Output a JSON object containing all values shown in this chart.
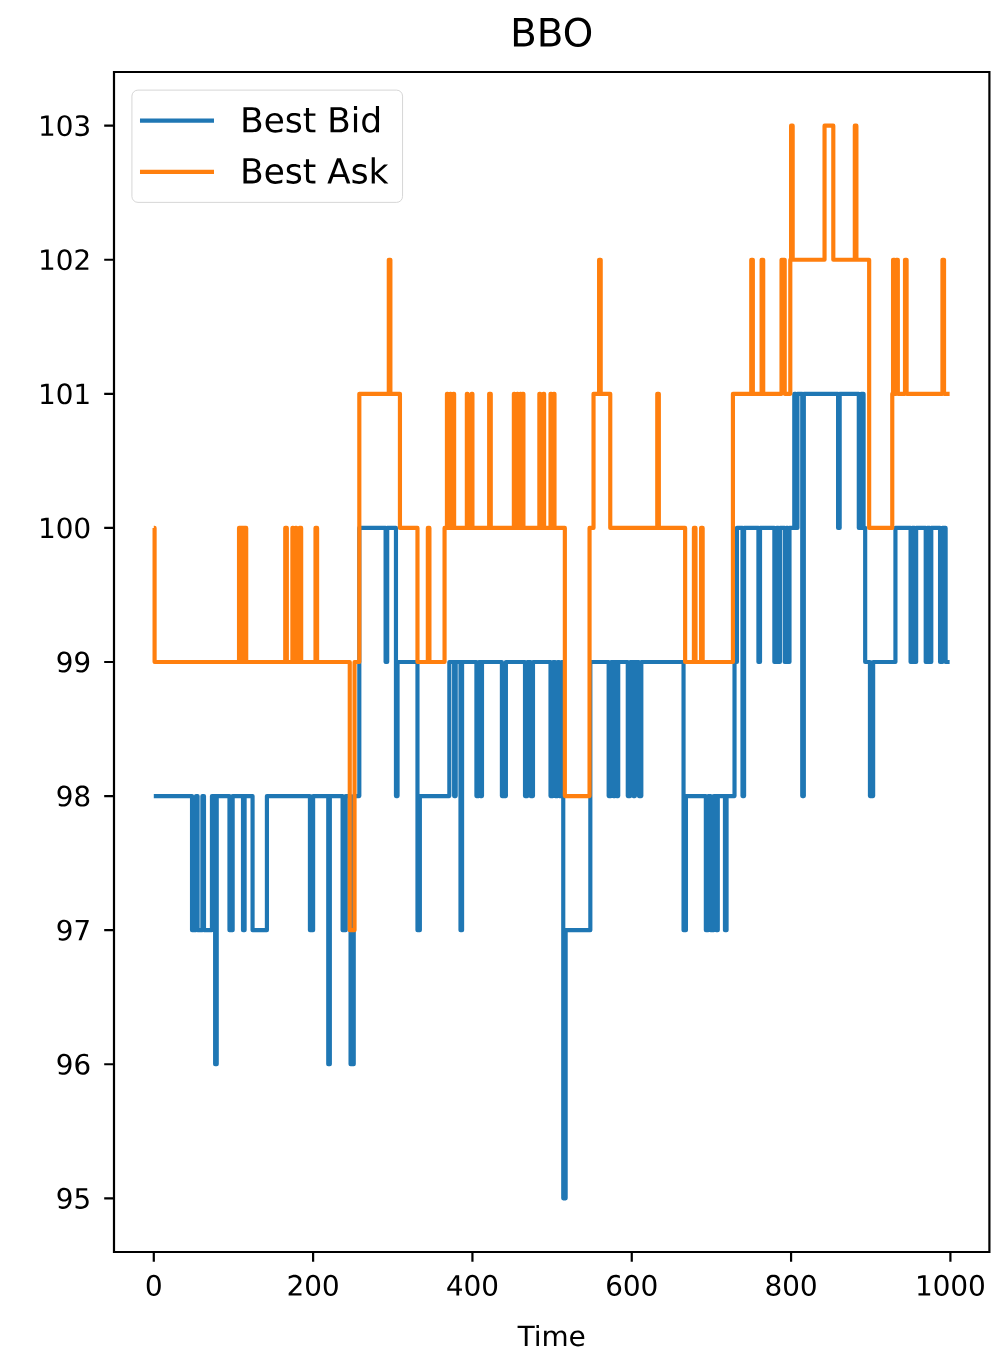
{
  "chart_data": {
    "type": "step",
    "title": "BBO",
    "xlabel": "Time",
    "xlim": [
      -49.95,
      1048.95
    ],
    "ylim": [
      94.6,
      103.4
    ],
    "xticks": [
      0,
      200,
      400,
      600,
      800,
      1000
    ],
    "yticks": [
      95,
      96,
      97,
      98,
      99,
      100,
      101,
      102,
      103
    ],
    "legend": "top left",
    "series": [
      {
        "name": "Best Bid",
        "color": "#1f77b4",
        "x": [
          0,
          48,
          53,
          55,
          61,
          63,
          73,
          77,
          79,
          95,
          99,
          112,
          114,
          124,
          142,
          196,
          200,
          219,
          221,
          237,
          241,
          247,
          251,
          258,
          291,
          293,
          304,
          306,
          331,
          334,
          371,
          377,
          379,
          385,
          387,
          405,
          408,
          410,
          412,
          437,
          442,
          466,
          469,
          473,
          476,
          498,
          501,
          504,
          507,
          509,
          512,
          514,
          517,
          548,
          571,
          574,
          577,
          579,
          581,
          583,
          595,
          598,
          602,
          604,
          609,
          612,
          665,
          668,
          693,
          696,
          699,
          703,
          706,
          708,
          717,
          719,
          729,
          732,
          739,
          741,
          759,
          761,
          779,
          782,
          784,
          786,
          792,
          794,
          796,
          798,
          804,
          806,
          808,
          814,
          816,
          859,
          861,
          885,
          888,
          891,
          893,
          899,
          903,
          931,
          950,
          952,
          955,
          957,
          969,
          971,
          974,
          976,
          987,
          990,
          994,
          999
        ],
        "values": [
          98,
          97,
          98,
          97,
          98,
          97,
          98,
          96,
          98,
          97,
          98,
          97,
          98,
          97,
          98,
          97,
          98,
          96,
          98,
          97,
          98,
          96,
          98,
          100,
          99,
          100,
          98,
          99,
          97,
          98,
          99,
          98,
          99,
          97,
          99,
          98,
          99,
          98,
          99,
          98,
          99,
          98,
          99,
          98,
          99,
          98,
          99,
          98,
          99,
          98,
          99,
          95,
          97,
          99,
          98,
          99,
          98,
          99,
          98,
          99,
          98,
          99,
          98,
          99,
          98,
          99,
          97,
          98,
          97,
          98,
          97,
          98,
          97,
          98,
          97,
          98,
          99,
          100,
          98,
          100,
          99,
          100,
          99,
          100,
          99,
          100,
          99,
          100,
          99,
          100,
          101,
          100,
          101,
          98,
          101,
          100,
          101,
          100,
          101,
          100,
          99,
          98,
          99,
          100,
          99,
          100,
          99,
          100,
          99,
          100,
          99,
          100,
          99,
          100,
          99,
          99
        ]
      },
      {
        "name": "Best Ask",
        "color": "#ff7f0e",
        "x": [
          0,
          1,
          107,
          108,
          109,
          110,
          111,
          112,
          113,
          114,
          115,
          116,
          165,
          167,
          174,
          175,
          178,
          179,
          183,
          185,
          203,
          205,
          246,
          252,
          258,
          295,
          297,
          309,
          331,
          344,
          346,
          365,
          368,
          369,
          372,
          373,
          376,
          377,
          393,
          394,
          399,
          400,
          421,
          423,
          452,
          453,
          456,
          457,
          460,
          461,
          463,
          464,
          484,
          485,
          489,
          490,
          498,
          499,
          502,
          503,
          516,
          547,
          552,
          559,
          561,
          573,
          632,
          634,
          667,
          678,
          680,
          687,
          689,
          727,
          750,
          752,
          763,
          765,
          788,
          792,
          799,
          800,
          802,
          842,
          853,
          880,
          882,
          898,
          927,
          928,
          930,
          932,
          934,
          943,
          945,
          990,
          992,
          999
        ],
        "values": [
          100,
          99,
          100,
          99,
          100,
          99,
          100,
          99,
          100,
          99,
          100,
          99,
          100,
          99,
          100,
          99,
          100,
          99,
          100,
          99,
          100,
          99,
          97,
          99,
          101,
          102,
          101,
          100,
          99,
          100,
          99,
          100,
          101,
          100,
          101,
          100,
          101,
          100,
          101,
          100,
          101,
          100,
          101,
          100,
          101,
          100,
          101,
          100,
          101,
          100,
          101,
          100,
          101,
          100,
          101,
          100,
          101,
          100,
          101,
          100,
          98,
          100,
          101,
          102,
          101,
          100,
          101,
          100,
          99,
          100,
          99,
          100,
          99,
          101,
          102,
          101,
          102,
          101,
          102,
          101,
          102,
          103,
          102,
          103,
          102,
          103,
          102,
          100,
          101,
          102,
          101,
          102,
          101,
          102,
          101,
          102,
          101,
          101
        ]
      }
    ]
  }
}
